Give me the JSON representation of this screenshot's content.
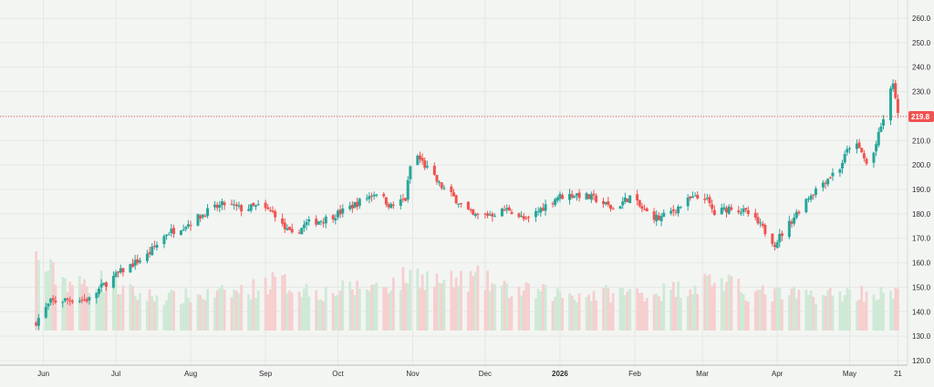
{
  "colors": {
    "background": "#f3f5f3",
    "up": "#26a69a",
    "down": "#ef5350",
    "up_volume": "#cfe9d6",
    "down_volume": "#f6cfcf",
    "grid": "#e4e7e4",
    "price_line": "#ef5350",
    "axis_line": "#b8bcb8"
  },
  "chart_data": {
    "type": "candlestick",
    "title": "",
    "xlabel": "",
    "ylabel": "",
    "ylim": [
      115,
      265
    ],
    "y_ticks": [
      "120.0",
      "130.0",
      "140.0",
      "150.0",
      "160.0",
      "170.0",
      "180.0",
      "190.0",
      "200.0",
      "210.0",
      "220.0",
      "230.0",
      "240.0",
      "250.0",
      "260.0"
    ],
    "x_ticks": [
      {
        "label": "Jun",
        "date": "2025-06-01"
      },
      {
        "label": "Jul",
        "date": "2025-07-01"
      },
      {
        "label": "Aug",
        "date": "2025-08-01"
      },
      {
        "label": "Sep",
        "date": "2025-09-01"
      },
      {
        "label": "Oct",
        "date": "2025-10-01"
      },
      {
        "label": "Nov",
        "date": "2025-11-01"
      },
      {
        "label": "Dec",
        "date": "2025-12-01"
      },
      {
        "label": "2026",
        "date": "2026-01-01",
        "bold": true
      },
      {
        "label": "Feb",
        "date": "2026-02-01"
      },
      {
        "label": "Mar",
        "date": "2026-03-01"
      },
      {
        "label": "Apr",
        "date": "2026-04-01"
      },
      {
        "label": "May",
        "date": "2026-05-01"
      },
      {
        "label": "21",
        "date": "2026-05-21"
      }
    ],
    "last_price": 219.8,
    "last_price_label": "219.8",
    "grid": true,
    "legend": "none",
    "close_path": [
      [
        "2025-05-29",
        136
      ],
      [
        "2025-06-04",
        144
      ],
      [
        "2025-06-12",
        145
      ],
      [
        "2025-06-20",
        145
      ],
      [
        "2025-06-26",
        151
      ],
      [
        "2025-07-04",
        157
      ],
      [
        "2025-07-14",
        163
      ],
      [
        "2025-07-22",
        172
      ],
      [
        "2025-07-31",
        176
      ],
      [
        "2025-08-08",
        181
      ],
      [
        "2025-08-15",
        184
      ],
      [
        "2025-08-22",
        182
      ],
      [
        "2025-08-29",
        183
      ],
      [
        "2025-09-05",
        180
      ],
      [
        "2025-09-08",
        175
      ],
      [
        "2025-09-12",
        171
      ],
      [
        "2025-09-18",
        176
      ],
      [
        "2025-09-26",
        178
      ],
      [
        "2025-10-03",
        181
      ],
      [
        "2025-10-10",
        185
      ],
      [
        "2025-10-17",
        189
      ],
      [
        "2025-10-23",
        183
      ],
      [
        "2025-10-29",
        186
      ],
      [
        "2025-11-01",
        206
      ],
      [
        "2025-11-05",
        201
      ],
      [
        "2025-11-12",
        192
      ],
      [
        "2025-11-20",
        185
      ],
      [
        "2025-11-26",
        179
      ],
      [
        "2025-12-04",
        180
      ],
      [
        "2025-12-11",
        182
      ],
      [
        "2025-12-18",
        177
      ],
      [
        "2025-12-24",
        182
      ],
      [
        "2025-12-31",
        187
      ],
      [
        "2026-01-08",
        188
      ],
      [
        "2026-01-16",
        186
      ],
      [
        "2026-01-23",
        182
      ],
      [
        "2026-01-30",
        187
      ],
      [
        "2026-02-05",
        181
      ],
      [
        "2026-02-11",
        178
      ],
      [
        "2026-02-18",
        182
      ],
      [
        "2026-02-24",
        186
      ],
      [
        "2026-03-02",
        187
      ],
      [
        "2026-03-06",
        180
      ],
      [
        "2026-03-13",
        183
      ],
      [
        "2026-03-20",
        180
      ],
      [
        "2026-03-26",
        174
      ],
      [
        "2026-03-31",
        168
      ],
      [
        "2026-04-06",
        176
      ],
      [
        "2026-04-13",
        186
      ],
      [
        "2026-04-20",
        193
      ],
      [
        "2026-04-27",
        199
      ],
      [
        "2026-05-02",
        210
      ],
      [
        "2026-05-06",
        205
      ],
      [
        "2026-05-09",
        198
      ],
      [
        "2026-05-13",
        212
      ],
      [
        "2026-05-17",
        226
      ],
      [
        "2026-05-19",
        234
      ],
      [
        "2026-05-21",
        219.8
      ]
    ],
    "volume_profile": [
      [
        "2025-05-29",
        0.6
      ],
      [
        "2025-06-05",
        0.48
      ],
      [
        "2025-06-15",
        0.38
      ],
      [
        "2025-06-25",
        0.42
      ],
      [
        "2025-07-10",
        0.3
      ],
      [
        "2025-07-25",
        0.28
      ],
      [
        "2025-08-10",
        0.3
      ],
      [
        "2025-08-25",
        0.34
      ],
      [
        "2025-09-05",
        0.42
      ],
      [
        "2025-09-15",
        0.36
      ],
      [
        "2025-09-25",
        0.32
      ],
      [
        "2025-10-10",
        0.36
      ],
      [
        "2025-10-25",
        0.4
      ],
      [
        "2025-11-01",
        0.48
      ],
      [
        "2025-11-15",
        0.4
      ],
      [
        "2025-11-28",
        0.44
      ],
      [
        "2025-12-10",
        0.34
      ],
      [
        "2025-12-25",
        0.32
      ],
      [
        "2026-01-10",
        0.3
      ],
      [
        "2026-01-25",
        0.32
      ],
      [
        "2026-02-10",
        0.32
      ],
      [
        "2026-02-26",
        0.38
      ],
      [
        "2026-03-05",
        0.44
      ],
      [
        "2026-03-20",
        0.32
      ],
      [
        "2026-04-05",
        0.3
      ],
      [
        "2026-04-20",
        0.3
      ],
      [
        "2026-05-05",
        0.32
      ],
      [
        "2026-05-21",
        0.3
      ]
    ]
  }
}
